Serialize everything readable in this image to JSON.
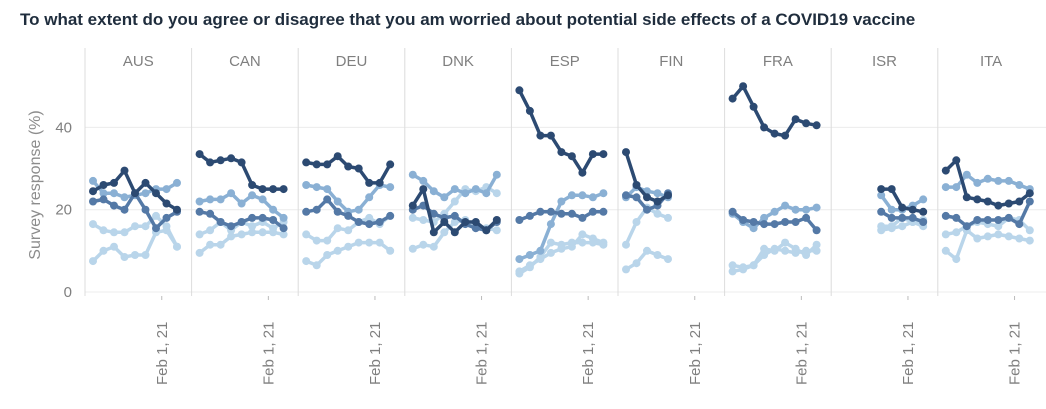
{
  "chart_data": {
    "type": "line",
    "title": "To what extent do you agree or disagree that you am worried about potential side effects of a COVID19 vaccine",
    "ylabel": "Survey response (%)",
    "xlabel": "",
    "ylim": [
      0,
      52
    ],
    "yticks": [
      0,
      20,
      40
    ],
    "x_tick_label": "Feb 1, 21",
    "grid": true,
    "legend": "none",
    "series_colors": [
      "#2c4a72",
      "#5479a6",
      "#8ab0d4",
      "#b9d5ea"
    ],
    "panels": [
      {
        "name": "AUS",
        "series": [
          {
            "x": [
              1,
              2,
              3,
              4,
              5,
              6,
              7,
              8,
              9
            ],
            "values": [
              24.5,
              26,
              26.5,
              29.5,
              24,
              26.5,
              24,
              21.5,
              20
            ]
          },
          {
            "x": [
              1,
              2,
              3,
              4,
              5,
              6,
              7,
              8,
              9
            ],
            "values": [
              22,
              22.5,
              21,
              20,
              24,
              20,
              15.5,
              18,
              19.5
            ]
          },
          {
            "x": [
              1,
              2,
              3,
              4,
              5,
              6,
              7,
              8,
              9
            ],
            "values": [
              27,
              24,
              24,
              23,
              23.5,
              24,
              25,
              25,
              26.5
            ]
          },
          {
            "x": [
              1,
              2,
              3,
              4,
              5,
              6,
              7,
              8,
              9
            ],
            "values": [
              16.5,
              15,
              14.5,
              14.5,
              16,
              16,
              18.5,
              16,
              11
            ]
          },
          {
            "x": [
              1,
              2,
              3,
              4,
              5,
              6,
              7,
              8,
              9
            ],
            "values": [
              7.5,
              10,
              11,
              8.5,
              9,
              9,
              14.5,
              15,
              11
            ]
          }
        ]
      },
      {
        "name": "CAN",
        "series": [
          {
            "x": [
              1,
              2,
              3,
              4,
              5,
              6,
              7,
              8,
              9
            ],
            "values": [
              33.5,
              31.5,
              32,
              32.5,
              31.5,
              26,
              25,
              25,
              25
            ]
          },
          {
            "x": [
              1,
              2,
              3,
              4,
              5,
              6,
              7,
              8,
              9
            ],
            "values": [
              19.5,
              19,
              17,
              16,
              17,
              18,
              18,
              17.5,
              15.5
            ]
          },
          {
            "x": [
              1,
              2,
              3,
              4,
              5,
              6,
              7,
              8,
              9
            ],
            "values": [
              22,
              22.5,
              22.5,
              24,
              21.5,
              23.5,
              22.5,
              20,
              18
            ]
          },
          {
            "x": [
              1,
              2,
              3,
              4,
              5,
              6,
              7,
              8,
              9
            ],
            "values": [
              14,
              15,
              17,
              15,
              17,
              16,
              17,
              15.5,
              17
            ]
          },
          {
            "x": [
              1,
              2,
              3,
              4,
              5,
              6,
              7,
              8,
              9
            ],
            "values": [
              9.5,
              11.5,
              11.5,
              13.5,
              14,
              14.5,
              14.5,
              14.5,
              14
            ]
          }
        ]
      },
      {
        "name": "DEU",
        "series": [
          {
            "x": [
              1,
              2,
              3,
              4,
              5,
              6,
              7,
              8,
              9
            ],
            "values": [
              31.5,
              31,
              31,
              33,
              30.5,
              30,
              26.5,
              26.5,
              31
            ]
          },
          {
            "x": [
              1,
              2,
              3,
              4,
              5,
              6,
              7,
              8,
              9
            ],
            "values": [
              19.5,
              20,
              22.5,
              19.5,
              18.5,
              17,
              16.5,
              17,
              18.5
            ]
          },
          {
            "x": [
              1,
              2,
              3,
              4,
              5,
              6,
              7,
              8,
              9
            ],
            "values": [
              26,
              25.5,
              25,
              22,
              19.5,
              20,
              23,
              26,
              25.5
            ]
          },
          {
            "x": [
              1,
              2,
              3,
              4,
              5,
              6,
              7,
              8,
              9
            ],
            "values": [
              14,
              12.5,
              12.5,
              15.5,
              15,
              17,
              18,
              16.5,
              18.5
            ]
          },
          {
            "x": [
              1,
              2,
              3,
              4,
              5,
              6,
              7,
              8,
              9
            ],
            "values": [
              7.5,
              6.5,
              9,
              10,
              11,
              12,
              12,
              12,
              10
            ]
          }
        ]
      },
      {
        "name": "DNK",
        "series": [
          {
            "x": [
              1,
              2,
              3,
              4,
              5,
              6,
              7,
              8,
              9
            ],
            "values": [
              21,
              25,
              14.5,
              17,
              14.5,
              17,
              17,
              15,
              17.5
            ]
          },
          {
            "x": [
              1,
              2,
              3,
              4,
              5,
              6,
              7,
              8,
              9
            ],
            "values": [
              20,
              21,
              19,
              18,
              18.5,
              16.5,
              15.5,
              15,
              17
            ]
          },
          {
            "x": [
              1,
              2,
              3,
              4,
              5,
              6,
              7,
              8,
              9
            ],
            "values": [
              28.5,
              27,
              24.5,
              23,
              25,
              24,
              25,
              24,
              28.5
            ]
          },
          {
            "x": [
              1,
              2,
              3,
              4,
              5,
              6,
              7,
              8,
              9
            ],
            "values": [
              18,
              17.5,
              17,
              19,
              22,
              25,
              24.5,
              25.5,
              24
            ]
          },
          {
            "x": [
              1,
              2,
              3,
              4,
              5,
              6,
              7,
              8,
              9
            ],
            "values": [
              10.5,
              11.5,
              11,
              14.5,
              17,
              17.5,
              16,
              15.5,
              15
            ]
          }
        ]
      },
      {
        "name": "ESP",
        "series": [
          {
            "x": [
              1,
              2,
              3,
              4,
              5,
              6,
              7,
              8,
              9
            ],
            "values": [
              49,
              44,
              38,
              38,
              34,
              33,
              29,
              33.5,
              33.5
            ]
          },
          {
            "x": [
              1,
              2,
              3,
              4,
              5,
              6,
              7,
              8,
              9
            ],
            "values": [
              17.5,
              18.5,
              19.5,
              19.5,
              19,
              19,
              18,
              19.5,
              19.5
            ]
          },
          {
            "x": [
              1,
              2,
              3,
              4,
              5,
              6,
              7,
              8,
              9
            ],
            "values": [
              8,
              9,
              10,
              16.5,
              22,
              23.5,
              23.5,
              23,
              24
            ]
          },
          {
            "x": [
              1,
              2,
              3,
              4,
              5,
              6,
              7,
              8,
              9
            ],
            "values": [
              4.5,
              6,
              8.5,
              12,
              11.5,
              12,
              12,
              12,
              11.5
            ]
          },
          {
            "x": [
              1,
              2,
              3,
              4,
              5,
              6,
              7,
              8,
              9
            ],
            "values": [
              5,
              6.5,
              8,
              9.5,
              10.5,
              11,
              14,
              13,
              12
            ]
          }
        ]
      },
      {
        "name": "FIN",
        "series": [
          {
            "x": [
              1,
              2,
              3,
              4,
              5
            ],
            "values": [
              34,
              26,
              23,
              22,
              23.5
            ]
          },
          {
            "x": [
              1,
              2,
              3,
              4,
              5
            ],
            "values": [
              23.5,
              23,
              20,
              21,
              24
            ]
          },
          {
            "x": [
              1,
              2,
              3,
              4,
              5
            ],
            "values": [
              23,
              25.5,
              24.5,
              24,
              23
            ]
          },
          {
            "x": [
              1,
              2,
              3,
              4,
              5
            ],
            "values": [
              11.5,
              17,
              20.5,
              19,
              18
            ]
          },
          {
            "x": [
              1,
              2,
              3,
              4,
              5
            ],
            "values": [
              5.5,
              7,
              10,
              9,
              8
            ]
          }
        ]
      },
      {
        "name": "FRA",
        "series": [
          {
            "x": [
              1,
              2,
              3,
              4,
              5,
              6,
              7,
              8,
              9
            ],
            "values": [
              47,
              50,
              45,
              40,
              38.5,
              38,
              42,
              41,
              40.5
            ]
          },
          {
            "x": [
              1,
              2,
              3,
              4,
              5,
              6,
              7,
              8,
              9
            ],
            "values": [
              19.5,
              17.5,
              17,
              16.5,
              16.5,
              17,
              17,
              18,
              15
            ]
          },
          {
            "x": [
              1,
              2,
              3,
              4,
              5,
              6,
              7,
              8,
              9
            ],
            "values": [
              19,
              17,
              15.5,
              18,
              19.5,
              21,
              20,
              20,
              20.5
            ]
          },
          {
            "x": [
              1,
              2,
              3,
              4,
              5,
              6,
              7,
              8,
              9
            ],
            "values": [
              6.5,
              6,
              6.5,
              10.5,
              10,
              12,
              10.5,
              9,
              11.5
            ]
          },
          {
            "x": [
              1,
              2,
              3,
              4,
              5,
              6,
              7,
              8,
              9
            ],
            "values": [
              5,
              5.5,
              6.5,
              9,
              10.5,
              10,
              9.5,
              10,
              10
            ]
          }
        ]
      },
      {
        "name": "ISR",
        "series": [
          {
            "x": [
              5,
              6,
              7,
              8,
              9
            ],
            "values": [
              25,
              25,
              20.5,
              20,
              19.5
            ]
          },
          {
            "x": [
              5,
              6,
              7,
              8,
              9
            ],
            "values": [
              19.5,
              18,
              18,
              18,
              17
            ]
          },
          {
            "x": [
              5,
              6,
              7,
              8,
              9
            ],
            "values": [
              23.5,
              20,
              20,
              21,
              22.5
            ]
          },
          {
            "x": [
              5,
              6,
              7,
              8,
              9
            ],
            "values": [
              16,
              16,
              18,
              17,
              17.5
            ]
          },
          {
            "x": [
              5,
              6,
              7,
              8,
              9
            ],
            "values": [
              15,
              15.5,
              16,
              17,
              16
            ]
          }
        ]
      },
      {
        "name": "ITA",
        "series": [
          {
            "x": [
              1,
              2,
              3,
              4,
              5,
              6,
              7,
              8,
              9
            ],
            "values": [
              29.5,
              32,
              23,
              22.5,
              22,
              21,
              21.5,
              22,
              24
            ]
          },
          {
            "x": [
              1,
              2,
              3,
              4,
              5,
              6,
              7,
              8,
              9
            ],
            "values": [
              18.5,
              18,
              16,
              17.5,
              17.5,
              17.5,
              18,
              16.5,
              22
            ]
          },
          {
            "x": [
              1,
              2,
              3,
              4,
              5,
              6,
              7,
              8,
              9
            ],
            "values": [
              25.5,
              25.5,
              28.5,
              26.5,
              27.5,
              27,
              27,
              26,
              25
            ]
          },
          {
            "x": [
              1,
              2,
              3,
              4,
              5,
              6,
              7,
              8,
              9
            ],
            "values": [
              14,
              14.5,
              16,
              17,
              16.5,
              16,
              18,
              17.5,
              15
            ]
          },
          {
            "x": [
              1,
              2,
              3,
              4,
              5,
              6,
              7,
              8,
              9
            ],
            "values": [
              10,
              8,
              15,
              13,
              13.5,
              14,
              13.5,
              13,
              12.5
            ]
          }
        ]
      }
    ]
  }
}
